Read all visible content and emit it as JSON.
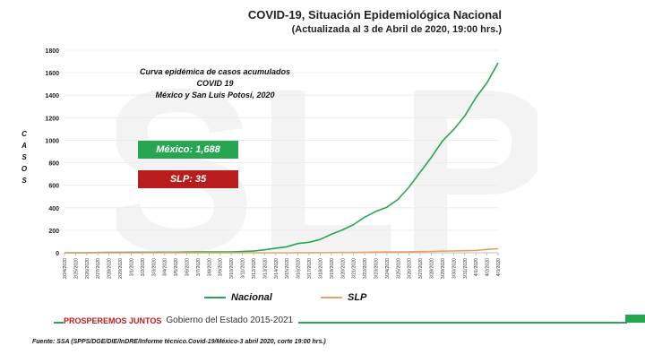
{
  "header": {
    "title": "COVID-19, Situación Epidemiológica Nacional",
    "subtitle": "(Actualizada al 3 de Abril de 2020, 19:00 hrs.)"
  },
  "watermark": {
    "text": "SLP"
  },
  "chart_data": {
    "type": "line",
    "title_lines": [
      "Curva epidémica de casos acumulados COVID 19",
      "México y San Luis Potosí, 2020"
    ],
    "ylabel": "C A S O S",
    "ylim": [
      0,
      1800
    ],
    "yticks": [
      0,
      200,
      400,
      600,
      800,
      1000,
      1200,
      1400,
      1600,
      1800
    ],
    "categories": [
      "2/24/2020",
      "2/25/2020",
      "2/26/2020",
      "2/27/2020",
      "2/28/2020",
      "2/29/2020",
      "3/1/2020",
      "3/2/2020",
      "3/3/2020",
      "3/4/2020",
      "3/5/2020",
      "3/6/2020",
      "3/7/2020",
      "3/8/2020",
      "3/9/2020",
      "3/10/2020",
      "3/11/2020",
      "3/12/2020",
      "3/13/2020",
      "3/14/2020",
      "3/15/2020",
      "3/16/2020",
      "3/17/2020",
      "3/18/2020",
      "3/19/2020",
      "3/20/2020",
      "3/21/2020",
      "3/22/2020",
      "3/23/2020",
      "3/24/2020",
      "3/25/2020",
      "3/26/2020",
      "3/27/2020",
      "3/28/2020",
      "3/29/2020",
      "3/30/2020",
      "3/31/2020",
      "4/1/2020",
      "4/2/2020",
      "4/3/2020"
    ],
    "series": [
      {
        "name": "Nacional",
        "color": "#27a651",
        "values": [
          0,
          0,
          0,
          2,
          4,
          4,
          5,
          5,
          5,
          5,
          5,
          6,
          7,
          7,
          7,
          7,
          11,
          15,
          26,
          41,
          53,
          82,
          93,
          118,
          164,
          203,
          251,
          316,
          367,
          405,
          475,
          585,
          717,
          848,
          993,
          1094,
          1215,
          1378,
          1510,
          1688
        ]
      },
      {
        "name": "SLP",
        "color": "#e8a06a",
        "values": [
          0,
          0,
          0,
          0,
          0,
          0,
          0,
          0,
          0,
          0,
          0,
          0,
          0,
          0,
          0,
          0,
          0,
          0,
          0,
          0,
          0,
          1,
          1,
          1,
          2,
          3,
          4,
          5,
          6,
          7,
          8,
          9,
          10,
          12,
          14,
          16,
          18,
          21,
          30,
          35
        ]
      }
    ]
  },
  "callouts": {
    "mexico": "México: 1,688",
    "slp": "SLP: 35"
  },
  "footer": {
    "slogan": "PROSPEREMOS JUNTOS",
    "government": "Gobierno del Estado 2015-2021",
    "source": "Fuente: SSA (SPPS/DGE/DIE/InDRE/Informe técnico.Covid-19/México-3 abril 2020, corte 19:00 hrs.)"
  }
}
